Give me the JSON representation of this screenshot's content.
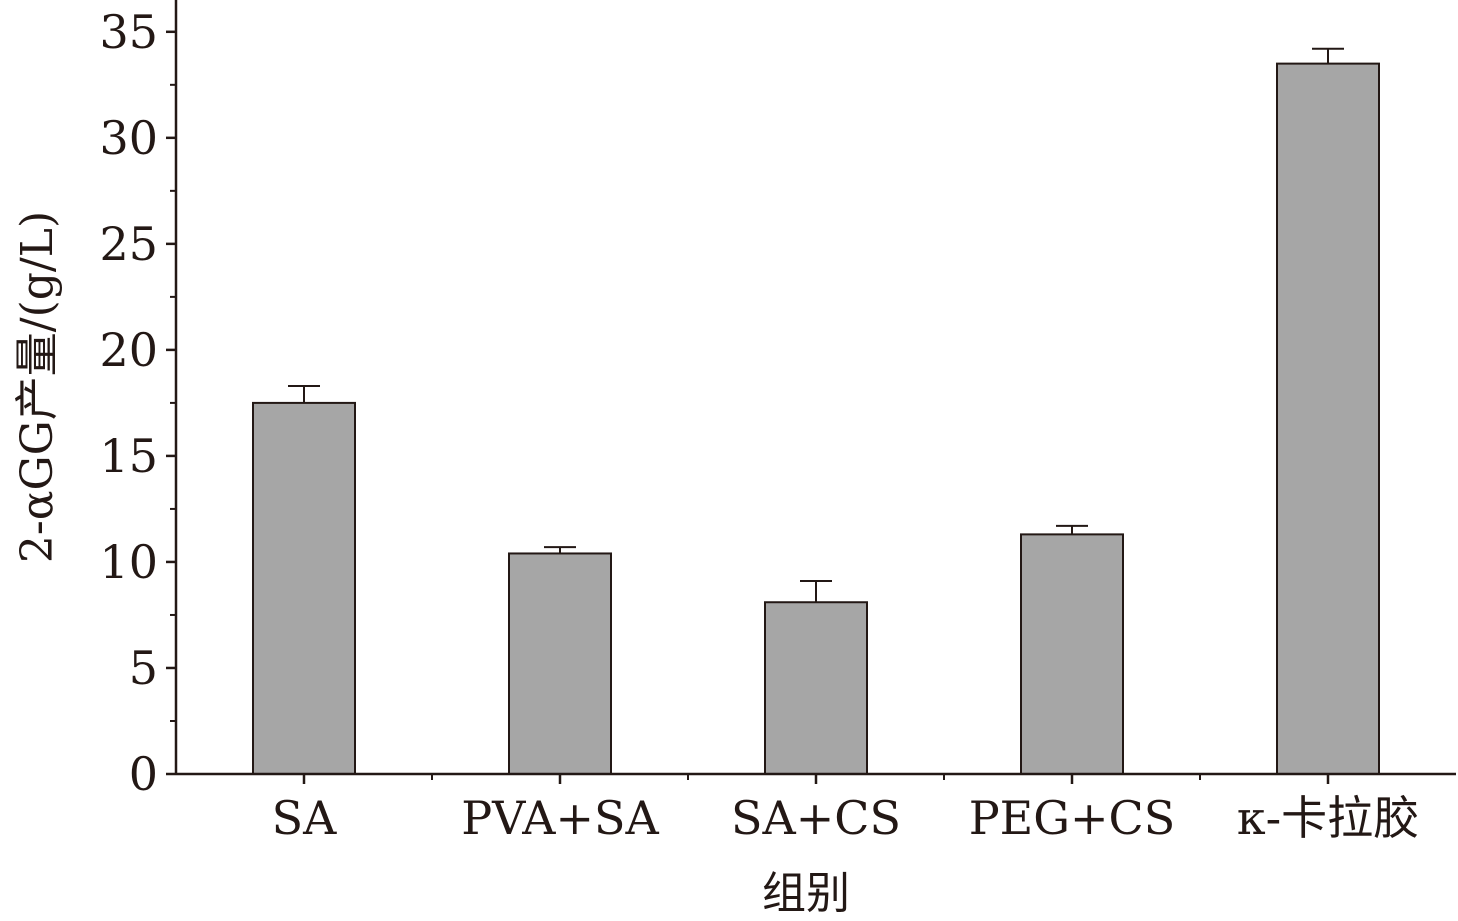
{
  "chart_data": {
    "type": "bar",
    "title": "",
    "xlabel": "组别",
    "ylabel": "2-αGG产量/(g/L)",
    "categories": [
      "SA",
      "PVA+SA",
      "SA+CS",
      "PEG+CS",
      "κ-卡拉胶"
    ],
    "values": [
      17.5,
      10.4,
      8.1,
      11.3,
      33.5
    ],
    "errors": [
      0.8,
      0.3,
      1.0,
      0.4,
      0.7
    ],
    "ylim": [
      0,
      36.5
    ],
    "yticks": [
      0,
      5,
      10,
      15,
      20,
      25,
      30,
      35
    ],
    "grid": false,
    "bar_color": "#a6a6a6",
    "bar_edge_color": "#231815"
  }
}
